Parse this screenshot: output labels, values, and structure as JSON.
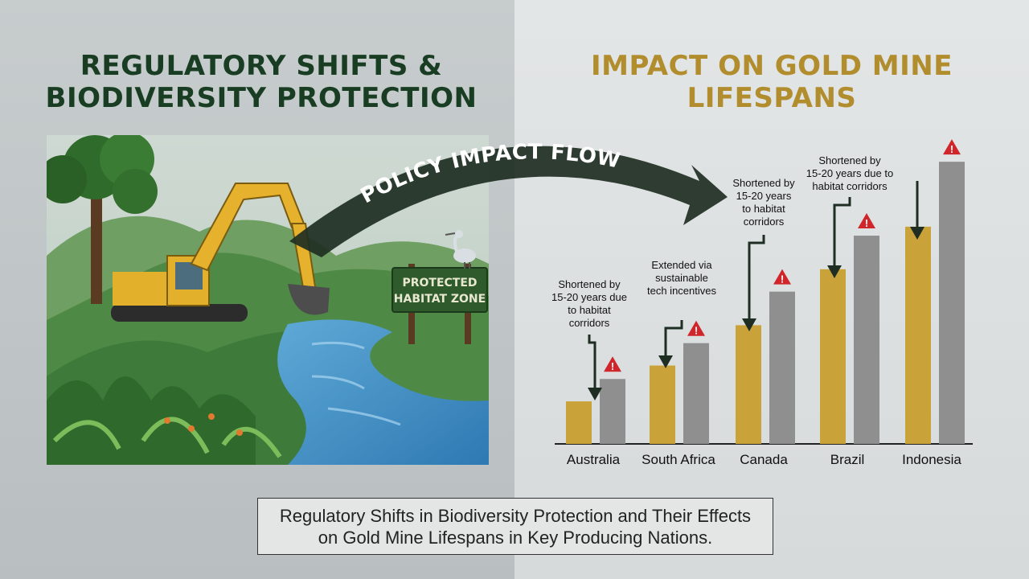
{
  "headings": {
    "left_line1": "REGULATORY SHIFTS &",
    "left_line2": "BIODIVERSITY PROTECTION",
    "right_line1": "IMPACT ON GOLD MINE",
    "right_line2": "LIFESPANS"
  },
  "flow_label": "POLICY IMPACT FLOW",
  "sign": {
    "line1": "PROTECTED",
    "line2": "HABITAT ZONE"
  },
  "caption": {
    "line1": "Regulatory Shifts in Biodiversity Protection and Their Effects",
    "line2": "on Gold Mine Lifespans in Key Producing Nations."
  },
  "colors": {
    "gold_bar": "#c9a23a",
    "gray_bar": "#8f8f8f",
    "warning": "#d0262b",
    "arrow": "#1e2e22",
    "heading_green": "#183d22",
    "heading_gold": "#b18d2e"
  },
  "icons": [
    "warning-icon",
    "down-arrow-icon",
    "excavator-icon",
    "heron-icon",
    "tree-icon"
  ],
  "chart_data": {
    "type": "bar",
    "categories": [
      "Australia",
      "South Africa",
      "Canada",
      "Brazil",
      "Indonesia"
    ],
    "series": [
      {
        "values": [
          0.19,
          0.35,
          0.53,
          0.78,
          0.97
        ]
      },
      {
        "values": [
          0.29,
          0.45,
          0.68,
          0.93,
          1.26
        ]
      }
    ],
    "ylim": [
      0,
      1.3
    ],
    "annotations": [
      {
        "category": "Australia",
        "lines": [
          "Shortened by",
          "15-20 years due",
          "to habitat",
          "corridors"
        ]
      },
      {
        "category": "South Africa",
        "lines": [
          "Extended via",
          "sustainable",
          "tech incentives"
        ]
      },
      {
        "category": "Canada",
        "lines": [
          "Shortened by",
          "15-20 years",
          "to habitat",
          "corridors"
        ]
      },
      {
        "category": "Brazil",
        "lines": [
          "Shortened by",
          "15-20 years due to",
          "habitat corridors"
        ]
      }
    ]
  }
}
